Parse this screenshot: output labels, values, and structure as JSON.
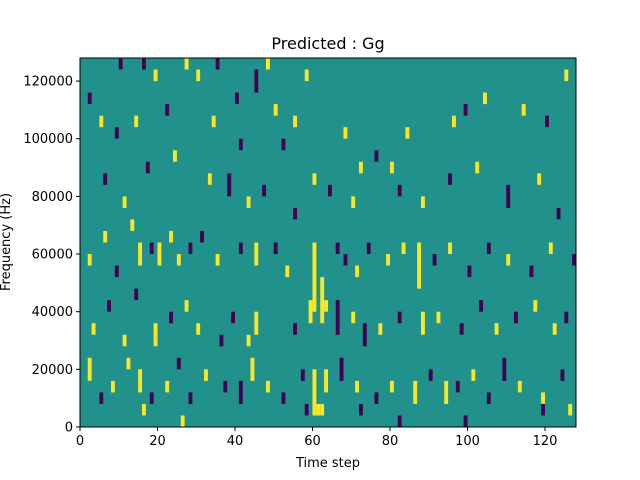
{
  "chart_data": {
    "type": "heatmap",
    "title": "Predicted : Gg",
    "xlabel": "Time step",
    "ylabel": "Frequency (Hz)",
    "xlim": [
      0,
      128
    ],
    "ylim": [
      0,
      128000
    ],
    "x_ticks": [
      0,
      20,
      40,
      60,
      80,
      100,
      120
    ],
    "x_tick_labels": [
      "0",
      "20",
      "40",
      "60",
      "80",
      "100",
      "120"
    ],
    "y_ticks": [
      0,
      20000,
      40000,
      60000,
      80000,
      100000,
      120000
    ],
    "y_tick_labels": [
      "0",
      "20000",
      "40000",
      "60000",
      "80000",
      "100000",
      "120000"
    ],
    "grid": false,
    "colormap": "viridis",
    "levels": [
      -1,
      0,
      1
    ],
    "colors": {
      "low": "#440154",
      "mid": "#21918c",
      "high": "#fde725"
    },
    "background_value": 0,
    "cell_width": 1,
    "cell_height": 4000,
    "cells": [
      {
        "x": 10,
        "y": 124000,
        "h": 4000,
        "v": -1
      },
      {
        "x": 16,
        "y": 124000,
        "h": 4000,
        "v": -1
      },
      {
        "x": 19,
        "y": 120000,
        "h": 4000,
        "v": 1
      },
      {
        "x": 27,
        "y": 124000,
        "h": 4000,
        "v": 1
      },
      {
        "x": 30,
        "y": 120000,
        "h": 4000,
        "v": 1
      },
      {
        "x": 35,
        "y": 124000,
        "h": 4000,
        "v": -1
      },
      {
        "x": 45,
        "y": 116000,
        "h": 8000,
        "v": -1
      },
      {
        "x": 48,
        "y": 124000,
        "h": 4000,
        "v": 1
      },
      {
        "x": 58,
        "y": 120000,
        "h": 4000,
        "v": 1
      },
      {
        "x": 2,
        "y": 112000,
        "h": 4000,
        "v": -1
      },
      {
        "x": 5,
        "y": 104000,
        "h": 4000,
        "v": 1
      },
      {
        "x": 9,
        "y": 100000,
        "h": 4000,
        "v": -1
      },
      {
        "x": 14,
        "y": 104000,
        "h": 4000,
        "v": 1
      },
      {
        "x": 22,
        "y": 108000,
        "h": 4000,
        "v": -1
      },
      {
        "x": 34,
        "y": 104000,
        "h": 4000,
        "v": 1
      },
      {
        "x": 40,
        "y": 112000,
        "h": 4000,
        "v": -1
      },
      {
        "x": 41,
        "y": 96000,
        "h": 4000,
        "v": -1
      },
      {
        "x": 50,
        "y": 108000,
        "h": 4000,
        "v": 1
      },
      {
        "x": 52,
        "y": 96000,
        "h": 4000,
        "v": -1
      },
      {
        "x": 55,
        "y": 104000,
        "h": 4000,
        "v": 1
      },
      {
        "x": 68,
        "y": 100000,
        "h": 4000,
        "v": 1
      },
      {
        "x": 72,
        "y": 88000,
        "h": 4000,
        "v": 1
      },
      {
        "x": 76,
        "y": 92000,
        "h": 4000,
        "v": -1
      },
      {
        "x": 80,
        "y": 88000,
        "h": 4000,
        "v": 1
      },
      {
        "x": 84,
        "y": 100000,
        "h": 4000,
        "v": 1
      },
      {
        "x": 96,
        "y": 104000,
        "h": 4000,
        "v": 1
      },
      {
        "x": 99,
        "y": 108000,
        "h": 4000,
        "v": -1
      },
      {
        "x": 104,
        "y": 112000,
        "h": 4000,
        "v": 1
      },
      {
        "x": 114,
        "y": 108000,
        "h": 4000,
        "v": 1
      },
      {
        "x": 120,
        "y": 104000,
        "h": 4000,
        "v": -1
      },
      {
        "x": 125,
        "y": 120000,
        "h": 4000,
        "v": 1
      },
      {
        "x": 6,
        "y": 84000,
        "h": 4000,
        "v": -1
      },
      {
        "x": 11,
        "y": 76000,
        "h": 4000,
        "v": 1
      },
      {
        "x": 17,
        "y": 88000,
        "h": 4000,
        "v": -1
      },
      {
        "x": 24,
        "y": 92000,
        "h": 4000,
        "v": 1
      },
      {
        "x": 33,
        "y": 84000,
        "h": 4000,
        "v": 1
      },
      {
        "x": 38,
        "y": 80000,
        "h": 8000,
        "v": -1
      },
      {
        "x": 43,
        "y": 76000,
        "h": 4000,
        "v": 1
      },
      {
        "x": 47,
        "y": 80000,
        "h": 4000,
        "v": -1
      },
      {
        "x": 55,
        "y": 72000,
        "h": 4000,
        "v": -1
      },
      {
        "x": 60,
        "y": 84000,
        "h": 4000,
        "v": 1
      },
      {
        "x": 64,
        "y": 80000,
        "h": 4000,
        "v": -1
      },
      {
        "x": 70,
        "y": 76000,
        "h": 4000,
        "v": 1
      },
      {
        "x": 82,
        "y": 80000,
        "h": 4000,
        "v": -1
      },
      {
        "x": 88,
        "y": 76000,
        "h": 4000,
        "v": 1
      },
      {
        "x": 95,
        "y": 84000,
        "h": 4000,
        "v": -1
      },
      {
        "x": 102,
        "y": 88000,
        "h": 4000,
        "v": 1
      },
      {
        "x": 110,
        "y": 76000,
        "h": 8000,
        "v": -1
      },
      {
        "x": 118,
        "y": 84000,
        "h": 4000,
        "v": 1
      },
      {
        "x": 123,
        "y": 72000,
        "h": 4000,
        "v": -1
      },
      {
        "x": 2,
        "y": 56000,
        "h": 4000,
        "v": 1
      },
      {
        "x": 6,
        "y": 64000,
        "h": 4000,
        "v": 1
      },
      {
        "x": 9,
        "y": 52000,
        "h": 4000,
        "v": -1
      },
      {
        "x": 13,
        "y": 68000,
        "h": 4000,
        "v": 1
      },
      {
        "x": 15,
        "y": 56000,
        "h": 8000,
        "v": 1
      },
      {
        "x": 18,
        "y": 60000,
        "h": 4000,
        "v": -1
      },
      {
        "x": 20,
        "y": 56000,
        "h": 8000,
        "v": 1
      },
      {
        "x": 23,
        "y": 64000,
        "h": 4000,
        "v": 1
      },
      {
        "x": 25,
        "y": 56000,
        "h": 4000,
        "v": 1
      },
      {
        "x": 28,
        "y": 60000,
        "h": 4000,
        "v": -1
      },
      {
        "x": 31,
        "y": 64000,
        "h": 4000,
        "v": -1
      },
      {
        "x": 35,
        "y": 56000,
        "h": 4000,
        "v": 1
      },
      {
        "x": 41,
        "y": 60000,
        "h": 4000,
        "v": -1
      },
      {
        "x": 45,
        "y": 56000,
        "h": 8000,
        "v": 1
      },
      {
        "x": 50,
        "y": 60000,
        "h": 4000,
        "v": -1
      },
      {
        "x": 53,
        "y": 52000,
        "h": 4000,
        "v": 1
      },
      {
        "x": 60,
        "y": 40000,
        "h": 24000,
        "v": 1
      },
      {
        "x": 62,
        "y": 36000,
        "h": 16000,
        "v": 1
      },
      {
        "x": 66,
        "y": 60000,
        "h": 4000,
        "v": -1
      },
      {
        "x": 68,
        "y": 56000,
        "h": 4000,
        "v": -1
      },
      {
        "x": 71,
        "y": 52000,
        "h": 4000,
        "v": 1
      },
      {
        "x": 74,
        "y": 60000,
        "h": 4000,
        "v": -1
      },
      {
        "x": 79,
        "y": 56000,
        "h": 4000,
        "v": 1
      },
      {
        "x": 83,
        "y": 60000,
        "h": 4000,
        "v": 1
      },
      {
        "x": 87,
        "y": 48000,
        "h": 16000,
        "v": 1
      },
      {
        "x": 91,
        "y": 56000,
        "h": 4000,
        "v": -1
      },
      {
        "x": 95,
        "y": 60000,
        "h": 4000,
        "v": 1
      },
      {
        "x": 100,
        "y": 52000,
        "h": 4000,
        "v": -1
      },
      {
        "x": 105,
        "y": 60000,
        "h": 4000,
        "v": -1
      },
      {
        "x": 110,
        "y": 56000,
        "h": 4000,
        "v": 1
      },
      {
        "x": 116,
        "y": 52000,
        "h": 4000,
        "v": -1
      },
      {
        "x": 121,
        "y": 60000,
        "h": 4000,
        "v": 1
      },
      {
        "x": 127,
        "y": 56000,
        "h": 4000,
        "v": -1
      },
      {
        "x": 3,
        "y": 32000,
        "h": 4000,
        "v": 1
      },
      {
        "x": 7,
        "y": 40000,
        "h": 4000,
        "v": -1
      },
      {
        "x": 11,
        "y": 28000,
        "h": 4000,
        "v": 1
      },
      {
        "x": 14,
        "y": 44000,
        "h": 4000,
        "v": -1
      },
      {
        "x": 19,
        "y": 28000,
        "h": 8000,
        "v": 1
      },
      {
        "x": 23,
        "y": 36000,
        "h": 4000,
        "v": -1
      },
      {
        "x": 27,
        "y": 40000,
        "h": 4000,
        "v": 1
      },
      {
        "x": 30,
        "y": 32000,
        "h": 4000,
        "v": 1
      },
      {
        "x": 36,
        "y": 28000,
        "h": 4000,
        "v": -1
      },
      {
        "x": 39,
        "y": 36000,
        "h": 4000,
        "v": -1
      },
      {
        "x": 43,
        "y": 28000,
        "h": 4000,
        "v": 1
      },
      {
        "x": 45,
        "y": 32000,
        "h": 8000,
        "v": 1
      },
      {
        "x": 55,
        "y": 32000,
        "h": 4000,
        "v": -1
      },
      {
        "x": 59,
        "y": 36000,
        "h": 8000,
        "v": 1
      },
      {
        "x": 63,
        "y": 40000,
        "h": 4000,
        "v": 1
      },
      {
        "x": 66,
        "y": 32000,
        "h": 12000,
        "v": -1
      },
      {
        "x": 70,
        "y": 36000,
        "h": 4000,
        "v": 1
      },
      {
        "x": 73,
        "y": 28000,
        "h": 8000,
        "v": -1
      },
      {
        "x": 77,
        "y": 32000,
        "h": 4000,
        "v": 1
      },
      {
        "x": 82,
        "y": 36000,
        "h": 4000,
        "v": -1
      },
      {
        "x": 88,
        "y": 32000,
        "h": 8000,
        "v": 1
      },
      {
        "x": 92,
        "y": 36000,
        "h": 4000,
        "v": 1
      },
      {
        "x": 98,
        "y": 32000,
        "h": 4000,
        "v": -1
      },
      {
        "x": 103,
        "y": 40000,
        "h": 4000,
        "v": -1
      },
      {
        "x": 107,
        "y": 32000,
        "h": 4000,
        "v": 1
      },
      {
        "x": 112,
        "y": 36000,
        "h": 4000,
        "v": -1
      },
      {
        "x": 117,
        "y": 40000,
        "h": 4000,
        "v": 1
      },
      {
        "x": 122,
        "y": 32000,
        "h": 4000,
        "v": 1
      },
      {
        "x": 125,
        "y": 36000,
        "h": 4000,
        "v": -1
      },
      {
        "x": 2,
        "y": 16000,
        "h": 8000,
        "v": 1
      },
      {
        "x": 5,
        "y": 8000,
        "h": 4000,
        "v": -1
      },
      {
        "x": 8,
        "y": 12000,
        "h": 4000,
        "v": 1
      },
      {
        "x": 12,
        "y": 20000,
        "h": 4000,
        "v": 1
      },
      {
        "x": 15,
        "y": 12000,
        "h": 8000,
        "v": 1
      },
      {
        "x": 18,
        "y": 8000,
        "h": 4000,
        "v": -1
      },
      {
        "x": 22,
        "y": 12000,
        "h": 4000,
        "v": 1
      },
      {
        "x": 25,
        "y": 20000,
        "h": 4000,
        "v": -1
      },
      {
        "x": 28,
        "y": 8000,
        "h": 4000,
        "v": -1
      },
      {
        "x": 32,
        "y": 16000,
        "h": 4000,
        "v": 1
      },
      {
        "x": 37,
        "y": 12000,
        "h": 4000,
        "v": -1
      },
      {
        "x": 41,
        "y": 8000,
        "h": 8000,
        "v": -1
      },
      {
        "x": 44,
        "y": 16000,
        "h": 8000,
        "v": 1
      },
      {
        "x": 48,
        "y": 12000,
        "h": 4000,
        "v": 1
      },
      {
        "x": 52,
        "y": 8000,
        "h": 4000,
        "v": -1
      },
      {
        "x": 57,
        "y": 16000,
        "h": 4000,
        "v": -1
      },
      {
        "x": 60,
        "y": 8000,
        "h": 12000,
        "v": 1
      },
      {
        "x": 63,
        "y": 12000,
        "h": 8000,
        "v": 1
      },
      {
        "x": 67,
        "y": 16000,
        "h": 8000,
        "v": -1
      },
      {
        "x": 71,
        "y": 12000,
        "h": 4000,
        "v": 1
      },
      {
        "x": 76,
        "y": 8000,
        "h": 4000,
        "v": -1
      },
      {
        "x": 80,
        "y": 12000,
        "h": 4000,
        "v": 1
      },
      {
        "x": 86,
        "y": 8000,
        "h": 8000,
        "v": 1
      },
      {
        "x": 90,
        "y": 16000,
        "h": 4000,
        "v": -1
      },
      {
        "x": 94,
        "y": 8000,
        "h": 8000,
        "v": 1
      },
      {
        "x": 97,
        "y": 12000,
        "h": 4000,
        "v": -1
      },
      {
        "x": 101,
        "y": 16000,
        "h": 4000,
        "v": 1
      },
      {
        "x": 105,
        "y": 8000,
        "h": 4000,
        "v": -1
      },
      {
        "x": 109,
        "y": 16000,
        "h": 8000,
        "v": -1
      },
      {
        "x": 113,
        "y": 12000,
        "h": 4000,
        "v": 1
      },
      {
        "x": 119,
        "y": 8000,
        "h": 4000,
        "v": 1
      },
      {
        "x": 124,
        "y": 16000,
        "h": 4000,
        "v": -1
      },
      {
        "x": 58,
        "y": 4000,
        "h": 4000,
        "v": -1
      },
      {
        "x": 60,
        "y": 4000,
        "h": 4000,
        "v": 1
      },
      {
        "x": 61,
        "y": 4000,
        "h": 4000,
        "v": 1
      },
      {
        "x": 62,
        "y": 4000,
        "h": 4000,
        "v": 1
      },
      {
        "x": 72,
        "y": 4000,
        "h": 4000,
        "v": -1
      },
      {
        "x": 82,
        "y": 0,
        "h": 4000,
        "v": -1
      },
      {
        "x": 99,
        "y": 0,
        "h": 4000,
        "v": -1
      },
      {
        "x": 119,
        "y": 4000,
        "h": 4000,
        "v": -1
      },
      {
        "x": 126,
        "y": 4000,
        "h": 4000,
        "v": 1
      },
      {
        "x": 16,
        "y": 4000,
        "h": 4000,
        "v": 1
      },
      {
        "x": 26,
        "y": 0,
        "h": 4000,
        "v": 1
      }
    ]
  }
}
